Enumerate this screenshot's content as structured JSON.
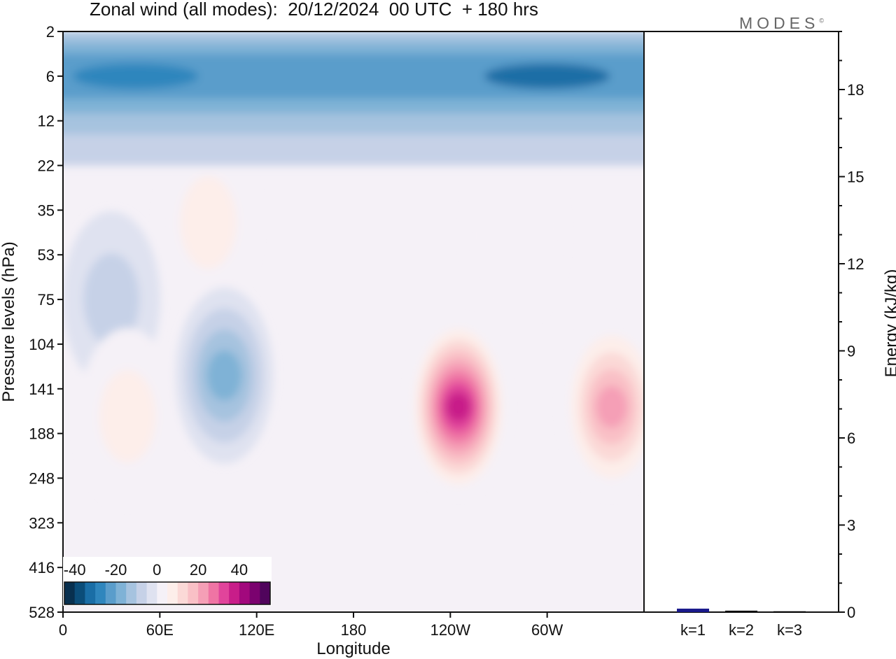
{
  "title": "Zonal wind (all modes):  20/12/2024  00 UTC  + 180 hrs",
  "brand": "MODES",
  "brand_mark": "©",
  "chart_data": [
    {
      "type": "heatmap",
      "title": "Zonal wind (all modes):  20/12/2024  00 UTC  + 180 hrs",
      "xlabel": "Longitude",
      "ylabel": "Pressure levels (hPa)",
      "x_ticks": [
        "0",
        "60E",
        "120E",
        "180",
        "120W",
        "60W"
      ],
      "x_tick_degrees_east": [
        0,
        60,
        120,
        180,
        240,
        300
      ],
      "xlim": [
        0,
        360
      ],
      "y_ticks": [
        "2",
        "6",
        "12",
        "22",
        "35",
        "53",
        "75",
        "104",
        "141",
        "188",
        "248",
        "323",
        "416",
        "528"
      ],
      "y_levels_hPa": [
        2,
        6,
        12,
        22,
        35,
        53,
        75,
        104,
        141,
        188,
        248,
        323,
        416,
        528
      ],
      "colorbar": {
        "labels": [
          "-40",
          "-20",
          "0",
          "20",
          "40"
        ],
        "label_values": [
          -40,
          -20,
          0,
          20,
          40
        ],
        "levels": [
          -45,
          -40,
          -35,
          -30,
          -25,
          -20,
          -15,
          -10,
          -5,
          0,
          5,
          10,
          15,
          20,
          25,
          30,
          35,
          40,
          45,
          50
        ],
        "colors": [
          "#08304f",
          "#0b4d79",
          "#1a6ea6",
          "#2f86bd",
          "#5a9dcb",
          "#7fb2d6",
          "#a6c3df",
          "#c6d1e7",
          "#dfe2f0",
          "#f5f1f7",
          "#fdeeea",
          "#fbd9d7",
          "#f9c0c6",
          "#f59fb6",
          "#ef74a4",
          "#e1449b",
          "#c81d89",
          "#a2087d",
          "#7b026f",
          "#50045c"
        ],
        "location": "lower-left"
      },
      "features": [
        {
          "lon": 45,
          "level_hPa": 6,
          "value": -30
        },
        {
          "lon": 150,
          "level_hPa": 6,
          "value": -25
        },
        {
          "lon": 300,
          "level_hPa": 6,
          "value": -32
        },
        {
          "lon": 90,
          "level_hPa": 40,
          "value": 8
        },
        {
          "lon": 280,
          "level_hPa": 45,
          "value": 6
        },
        {
          "lon": 100,
          "level_hPa": 130,
          "value": -20
        },
        {
          "lon": 30,
          "level_hPa": 75,
          "value": -8
        },
        {
          "lon": 40,
          "level_hPa": 170,
          "value": 10
        },
        {
          "lon": 245,
          "level_hPa": 160,
          "value": 42
        },
        {
          "lon": 340,
          "level_hPa": 160,
          "value": 25
        }
      ]
    },
    {
      "type": "bar",
      "categories": [
        "k=1",
        "k=2",
        "k=3"
      ],
      "values": [
        0.12,
        0.05,
        0.03
      ],
      "ylabel": "Energy (kJ/kg)",
      "ylim": [
        0,
        20
      ],
      "y_ticks": [
        "0",
        "3",
        "6",
        "9",
        "12",
        "15",
        "18"
      ],
      "y_tick_values": [
        0,
        3,
        6,
        9,
        12,
        15,
        18
      ],
      "bar_colors": [
        "#1a1a8c",
        "#000000",
        "#000000"
      ]
    }
  ]
}
